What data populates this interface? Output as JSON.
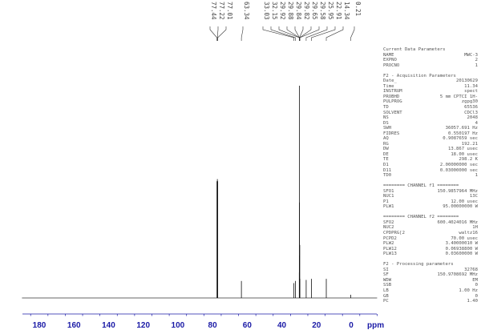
{
  "chart_data": {
    "type": "line",
    "title": "",
    "xlabel": "ppm",
    "ylabel": "",
    "xlim": [
      190,
      -15
    ],
    "x_reversed": true,
    "grid": false,
    "x_ticks": [
      180,
      160,
      140,
      120,
      100,
      80,
      60,
      40,
      20,
      0
    ],
    "peaks": [
      {
        "ppm": 77.44,
        "label": "77.44",
        "intensity": 55
      },
      {
        "ppm": 77.22,
        "label": "77.22",
        "intensity": 56
      },
      {
        "ppm": 77.01,
        "label": "77.01",
        "intensity": 55
      },
      {
        "ppm": 63.34,
        "label": "63.34",
        "intensity": 8
      },
      {
        "ppm": 33.03,
        "label": "33.03",
        "intensity": 7
      },
      {
        "ppm": 32.15,
        "label": "32.15",
        "intensity": 8
      },
      {
        "ppm": 29.92,
        "label": "29.92",
        "intensity": 12
      },
      {
        "ppm": 29.88,
        "label": "29.88",
        "intensity": 20
      },
      {
        "ppm": 29.84,
        "label": "29.84",
        "intensity": 45
      },
      {
        "ppm": 29.82,
        "label": "29.82",
        "intensity": 100
      },
      {
        "ppm": 29.65,
        "label": "29.65",
        "intensity": 25
      },
      {
        "ppm": 29.58,
        "label": "29.58",
        "intensity": 9
      },
      {
        "ppm": 25.95,
        "label": "25.95",
        "intensity": 8.5
      },
      {
        "ppm": 22.91,
        "label": "22.91",
        "intensity": 9
      },
      {
        "ppm": 14.34,
        "label": "14.34",
        "intensity": 9
      },
      {
        "ppm": 0.21,
        "label": "0.21",
        "intensity": 1.5
      }
    ],
    "colors": {
      "spectrum": "#111111",
      "axis": "#1a1aa6",
      "labels": "#444444"
    }
  },
  "parameters": {
    "current": {
      "title": "Current Data Parameters",
      "rows": [
        [
          "NAME",
          "MWC-3"
        ],
        [
          "EXPNO",
          "2"
        ],
        [
          "PROCNO",
          "1"
        ]
      ]
    },
    "acquisition": {
      "title": "F2 - Acquisition Parameters",
      "rows": [
        [
          "Date_",
          "20130629"
        ],
        [
          "Time",
          "11.34"
        ],
        [
          "INSTRUM",
          "spect"
        ],
        [
          "PROBHD",
          "5 mm CPTCI 1H-"
        ],
        [
          "PULPROG",
          "zgpg30"
        ],
        [
          "TD",
          "65536"
        ],
        [
          "SOLVENT",
          "CDCl3"
        ],
        [
          "NS",
          "2048"
        ],
        [
          "DS",
          "4"
        ],
        [
          "SWH",
          "36057.691 Hz"
        ],
        [
          "FIDRES",
          "0.550197 Hz"
        ],
        [
          "AQ",
          "0.9087659 sec"
        ],
        [
          "RG",
          "192.21"
        ],
        [
          "DW",
          "13.867 usec"
        ],
        [
          "DE",
          "18.00 usec"
        ],
        [
          "TE",
          "298.2 K"
        ],
        [
          "D1",
          "2.00000000 sec"
        ],
        [
          "D11",
          "0.03000000 sec"
        ],
        [
          "TD0",
          "1"
        ]
      ]
    },
    "channel_f1": {
      "title": "======== CHANNEL f1 ========",
      "rows": [
        [
          "SFO1",
          "150.9857964 MHz"
        ],
        [
          "NUC1",
          "13C"
        ],
        [
          "P1",
          "12.00 usec"
        ],
        [
          "PLW1",
          "95.00000000 W"
        ]
      ]
    },
    "channel_f2": {
      "title": "======== CHANNEL f2 ========",
      "rows": [
        [
          "SFO2",
          "600.4024016 MHz"
        ],
        [
          "NUC2",
          "1H"
        ],
        [
          "CPDPRG[2",
          "waltz16"
        ],
        [
          "PCPD2",
          "70.00 usec"
        ],
        [
          "PLW2",
          "3.40000010 W"
        ],
        [
          "PLW12",
          "0.06938800 W"
        ],
        [
          "PLW13",
          "0.03600000 W"
        ]
      ]
    },
    "processing": {
      "title": "F2 - Processing parameters",
      "rows": [
        [
          "SI",
          "32768"
        ],
        [
          "SF",
          "150.9708692 MHz"
        ],
        [
          "WDW",
          "EM"
        ],
        [
          "SSB",
          "0"
        ],
        [
          "LB",
          "1.00 Hz"
        ],
        [
          "GB",
          "0"
        ],
        [
          "PC",
          "1.40"
        ]
      ]
    }
  }
}
